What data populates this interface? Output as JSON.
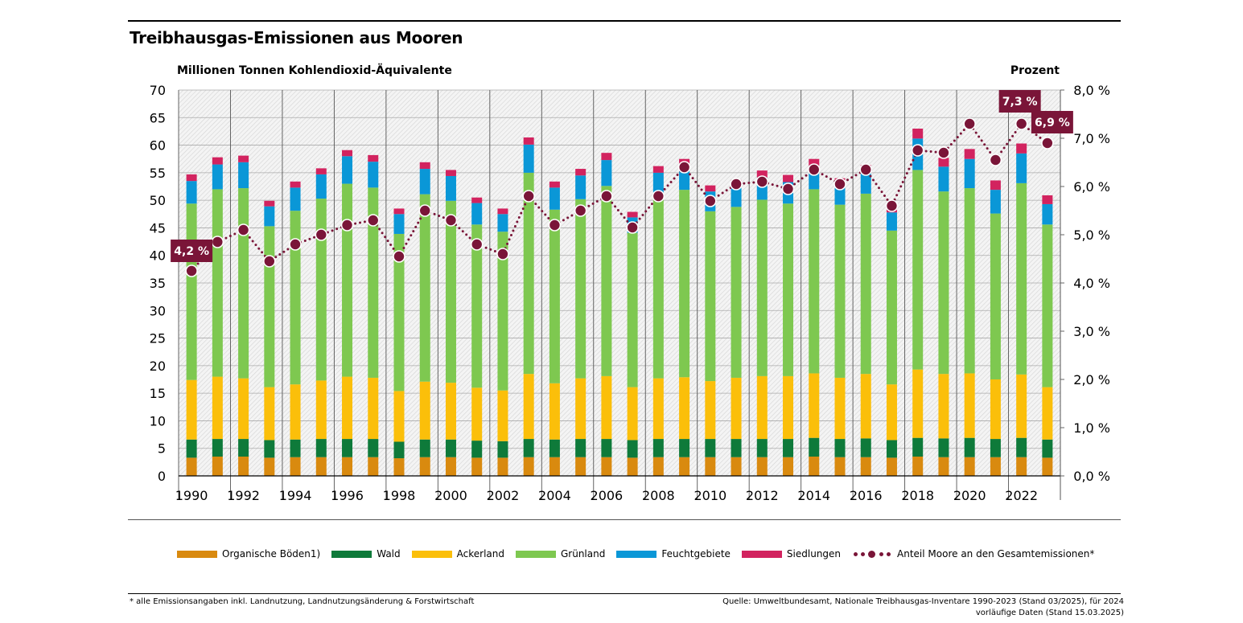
{
  "title": "Treibhausgas-Emissionen aus Mooren",
  "ylabel": "Millionen Tonnen Kohlendioxid-Äquivalente",
  "y2label": "Prozent",
  "chart_data": {
    "type": "bar",
    "stacked": true,
    "title": "Treibhausgas-Emissionen aus Mooren",
    "ylabel": "Millionen Tonnen Kohlendioxid-Äquivalente",
    "y2label": "Prozent",
    "ylim": [
      0,
      70
    ],
    "y2lim": [
      0,
      8
    ],
    "yticks": [
      "0",
      "5",
      "10",
      "15",
      "20",
      "25",
      "30",
      "35",
      "40",
      "45",
      "50",
      "55",
      "60",
      "65",
      "70"
    ],
    "y2ticks": [
      "0,0 %",
      "1,0 %",
      "2,0 %",
      "3,0 %",
      "4,0 %",
      "5,0 %",
      "6,0 %",
      "7,0 %",
      "8,0 %"
    ],
    "categories": [
      "1990",
      "1991",
      "1992",
      "1993",
      "1994",
      "1995",
      "1996",
      "1997",
      "1998",
      "1999",
      "2000",
      "2001",
      "2002",
      "2003",
      "2004",
      "2005",
      "2006",
      "2007",
      "2008",
      "2009",
      "2010",
      "2011",
      "2012",
      "2013",
      "2014",
      "2015",
      "2016",
      "2017",
      "2018",
      "2019",
      "2020",
      "2021",
      "2022",
      "2023"
    ],
    "xtick_labels": [
      "1990",
      "",
      "1992",
      "",
      "1994",
      "",
      "1996",
      "",
      "1998",
      "",
      "2000",
      "",
      "2002",
      "",
      "2004",
      "",
      "2006",
      "",
      "2008",
      "",
      "2010",
      "",
      "2012",
      "",
      "2014",
      "",
      "2016",
      "",
      "2018",
      "",
      "2020",
      "",
      "2022",
      ""
    ],
    "series": [
      {
        "name": "Organische Böden1)",
        "color": "#d98a0f",
        "values": [
          3.3,
          3.5,
          3.5,
          3.3,
          3.4,
          3.4,
          3.4,
          3.4,
          3.2,
          3.4,
          3.4,
          3.3,
          3.3,
          3.4,
          3.4,
          3.4,
          3.4,
          3.3,
          3.4,
          3.4,
          3.4,
          3.4,
          3.4,
          3.4,
          3.5,
          3.4,
          3.4,
          3.3,
          3.5,
          3.4,
          3.4,
          3.4,
          3.4,
          3.3
        ]
      },
      {
        "name": "Wald",
        "color": "#0e7a3a",
        "values": [
          3.3,
          3.2,
          3.2,
          3.2,
          3.2,
          3.3,
          3.3,
          3.3,
          3.0,
          3.2,
          3.2,
          3.1,
          3.0,
          3.3,
          3.2,
          3.3,
          3.3,
          3.2,
          3.3,
          3.3,
          3.3,
          3.3,
          3.3,
          3.3,
          3.4,
          3.3,
          3.4,
          3.2,
          3.4,
          3.4,
          3.5,
          3.3,
          3.5,
          3.3
        ]
      },
      {
        "name": "Ackerland",
        "color": "#fbbf0a",
        "values": [
          10.8,
          11.3,
          11.0,
          9.6,
          10.0,
          10.6,
          11.3,
          11.1,
          9.2,
          10.5,
          10.3,
          9.6,
          9.2,
          11.8,
          10.2,
          11.0,
          11.4,
          9.6,
          11.0,
          11.2,
          10.5,
          11.1,
          11.4,
          11.4,
          11.7,
          11.1,
          11.7,
          10.1,
          12.4,
          11.7,
          11.7,
          10.8,
          11.5,
          9.5
        ]
      },
      {
        "name": "Grünland",
        "color": "#7ec850",
        "values": [
          32.0,
          34.0,
          34.5,
          29.2,
          31.5,
          33.0,
          35.0,
          34.5,
          28.5,
          34.0,
          33.0,
          29.6,
          28.8,
          36.5,
          31.5,
          32.5,
          34.5,
          28.0,
          33.0,
          34.0,
          30.8,
          31.0,
          32.0,
          31.3,
          33.4,
          31.4,
          32.7,
          27.9,
          36.2,
          33.1,
          33.6,
          30.1,
          34.7,
          29.5
        ]
      },
      {
        "name": "Feuchtgebiete",
        "color": "#0a97d7",
        "values": [
          4.1,
          4.5,
          4.7,
          3.6,
          4.2,
          4.4,
          5.0,
          4.7,
          3.6,
          4.6,
          4.5,
          3.9,
          3.2,
          5.1,
          4.0,
          4.3,
          4.7,
          2.8,
          4.3,
          4.4,
          3.6,
          3.7,
          4.0,
          3.9,
          4.2,
          3.5,
          3.9,
          3.3,
          5.7,
          4.5,
          5.3,
          4.3,
          5.4,
          3.7
        ]
      },
      {
        "name": "Siedlungen",
        "color": "#d2235f",
        "values": [
          1.2,
          1.3,
          1.2,
          1.0,
          1.1,
          1.1,
          1.1,
          1.2,
          1.0,
          1.2,
          1.1,
          1.0,
          1.0,
          1.3,
          1.1,
          1.2,
          1.3,
          1.0,
          1.2,
          1.2,
          1.1,
          1.2,
          1.3,
          1.3,
          1.3,
          1.3,
          1.3,
          1.1,
          1.8,
          1.6,
          1.8,
          1.7,
          1.8,
          1.6
        ]
      }
    ],
    "line": {
      "name": "Anteil Moore an den Gesamtemissionen*",
      "color": "#7a1538",
      "axis": "right",
      "values": [
        4.25,
        4.85,
        5.1,
        4.45,
        4.8,
        5.0,
        5.2,
        5.3,
        4.55,
        5.5,
        5.3,
        4.8,
        4.6,
        5.8,
        5.2,
        5.5,
        5.8,
        5.15,
        5.8,
        6.4,
        5.7,
        6.05,
        6.1,
        5.95,
        6.35,
        6.05,
        6.35,
        5.6,
        6.75,
        6.7,
        7.3,
        6.55,
        7.3,
        6.9
      ]
    },
    "annotations": [
      {
        "category": "1990",
        "text": "4,2 %"
      },
      {
        "category": "2022",
        "text": "7,3 %"
      },
      {
        "category": "2023",
        "text": "6,9 %"
      }
    ],
    "grid": true,
    "legend_position": "bottom"
  },
  "footnote": "* alle Emissionsangaben inkl. Landnutzung, Landnutzungsänderung & Forstwirtschaft",
  "source_line1": "Quelle: Umweltbundesamt, Nationale Treibhausgas-Inventare 1990-2023 (Stand 03/2025), für 2024",
  "source_line2": "vorläufige Daten (Stand 15.03.2025)"
}
